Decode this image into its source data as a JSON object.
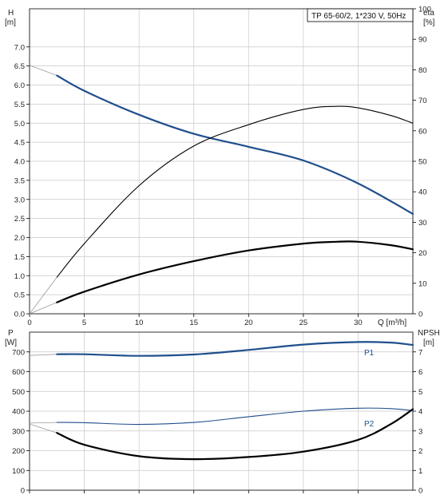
{
  "chart_data": {
    "title": "TP 65-60/2, 1*230 V, 50Hz",
    "colors": {
      "blue": "#1f4e8c",
      "black": "#000000",
      "grid": "#c8c8c8",
      "extrapolation": "#9a9a9a"
    },
    "top": {
      "type": "line",
      "xlabel": "Q [m³/h]",
      "ylabel_left": [
        "H",
        "[m]"
      ],
      "ylabel_right": [
        "eta",
        "[%]"
      ],
      "xlim": [
        0,
        35
      ],
      "ylim_left": [
        0,
        8
      ],
      "ylim_right": [
        0,
        100
      ],
      "xticks": [
        0,
        5,
        10,
        15,
        20,
        25,
        30
      ],
      "xtick_labels": [
        "0",
        "5",
        "10",
        "15",
        "20",
        "25",
        "30"
      ],
      "yticks_left": [
        0.0,
        0.5,
        1.0,
        1.5,
        2.0,
        2.5,
        3.0,
        3.5,
        4.0,
        4.5,
        5.0,
        5.5,
        6.0,
        6.5,
        7.0
      ],
      "ytick_labels_left": [
        "0.0",
        "0.5",
        "1.0",
        "1.5",
        "2.0",
        "2.5",
        "3.0",
        "3.5",
        "4.0",
        "4.5",
        "5.0",
        "5.5",
        "6.0",
        "6.5",
        "7.0"
      ],
      "yticks_right": [
        0,
        10,
        20,
        30,
        40,
        50,
        60,
        70,
        80,
        90,
        100
      ],
      "ytick_labels_right": [
        "0",
        "10",
        "20",
        "30",
        "40",
        "50",
        "60",
        "70",
        "80",
        "90",
        "100"
      ],
      "grid": true,
      "series": [
        {
          "axis": "left",
          "color": "blue",
          "width": 2.2,
          "extrapolation": [
            [
              0,
              6.52
            ],
            [
              2.5,
              6.25
            ]
          ],
          "x": [
            2.5,
            5,
            10,
            15,
            20,
            25,
            30,
            35
          ],
          "y": [
            6.25,
            5.85,
            5.22,
            4.72,
            4.38,
            4.02,
            3.42,
            2.62
          ]
        },
        {
          "axis": "right",
          "color": "black",
          "width": 1.1,
          "extrapolation": [
            [
              0,
              0
            ],
            [
              2.5,
              12
            ]
          ],
          "x": [
            2.5,
            5,
            10,
            15,
            20,
            25,
            28,
            30,
            33,
            35
          ],
          "y": [
            12,
            23,
            42,
            55,
            62,
            67,
            68,
            67.5,
            65,
            62.5
          ]
        },
        {
          "axis": "left",
          "color": "black",
          "width": 2.2,
          "extrapolation": [
            [
              0,
              0
            ],
            [
              2.5,
              0.3
            ]
          ],
          "x": [
            2.5,
            5,
            10,
            15,
            20,
            25,
            28,
            30,
            33,
            35
          ],
          "y": [
            0.3,
            0.58,
            1.03,
            1.38,
            1.66,
            1.84,
            1.89,
            1.89,
            1.8,
            1.69
          ]
        }
      ]
    },
    "bottom": {
      "type": "line",
      "ylabel_left": [
        "P",
        "[W]"
      ],
      "ylabel_right": [
        "NPSH",
        "[m]"
      ],
      "xlim": [
        0,
        35
      ],
      "ylim_left": [
        0,
        800
      ],
      "ylim_right": [
        0,
        8
      ],
      "xticks": [
        0,
        5,
        10,
        15,
        20,
        25,
        30
      ],
      "yticks_left": [
        0,
        100,
        200,
        300,
        400,
        500,
        600,
        700
      ],
      "ytick_labels_left": [
        "0",
        "100",
        "200",
        "300",
        "400",
        "500",
        "600",
        "700"
      ],
      "yticks_right": [
        0,
        1,
        2,
        3,
        4,
        5,
        6,
        7
      ],
      "ytick_labels_right": [
        "0",
        "1",
        "2",
        "3",
        "4",
        "5",
        "6",
        "7"
      ],
      "grid": true,
      "series": [
        {
          "name": "P1",
          "axis": "left",
          "color": "blue",
          "width": 2.2,
          "extrapolation": [
            [
              0,
              682
            ],
            [
              2.5,
              688
            ]
          ],
          "x": [
            2.5,
            5,
            10,
            15,
            20,
            25,
            30,
            33,
            35
          ],
          "y": [
            688,
            688,
            680,
            687,
            710,
            737,
            750,
            747,
            735
          ]
        },
        {
          "name": "P2",
          "axis": "left",
          "color": "blue",
          "width": 1.1,
          "extrapolation": [
            [
              0,
              340
            ],
            [
              2.5,
              343
            ]
          ],
          "x": [
            2.5,
            5,
            10,
            15,
            20,
            25,
            30,
            33,
            35
          ],
          "y": [
            343,
            342,
            333,
            343,
            372,
            400,
            415,
            413,
            403
          ]
        },
        {
          "axis": "right",
          "color": "black",
          "width": 2.2,
          "extrapolation": [
            [
              0,
              3.35
            ],
            [
              2.5,
              2.9
            ]
          ],
          "x": [
            2.5,
            5,
            10,
            15,
            20,
            25,
            30,
            33,
            35
          ],
          "y": [
            2.9,
            2.3,
            1.72,
            1.57,
            1.68,
            1.95,
            2.55,
            3.35,
            4.1
          ]
        }
      ]
    }
  }
}
